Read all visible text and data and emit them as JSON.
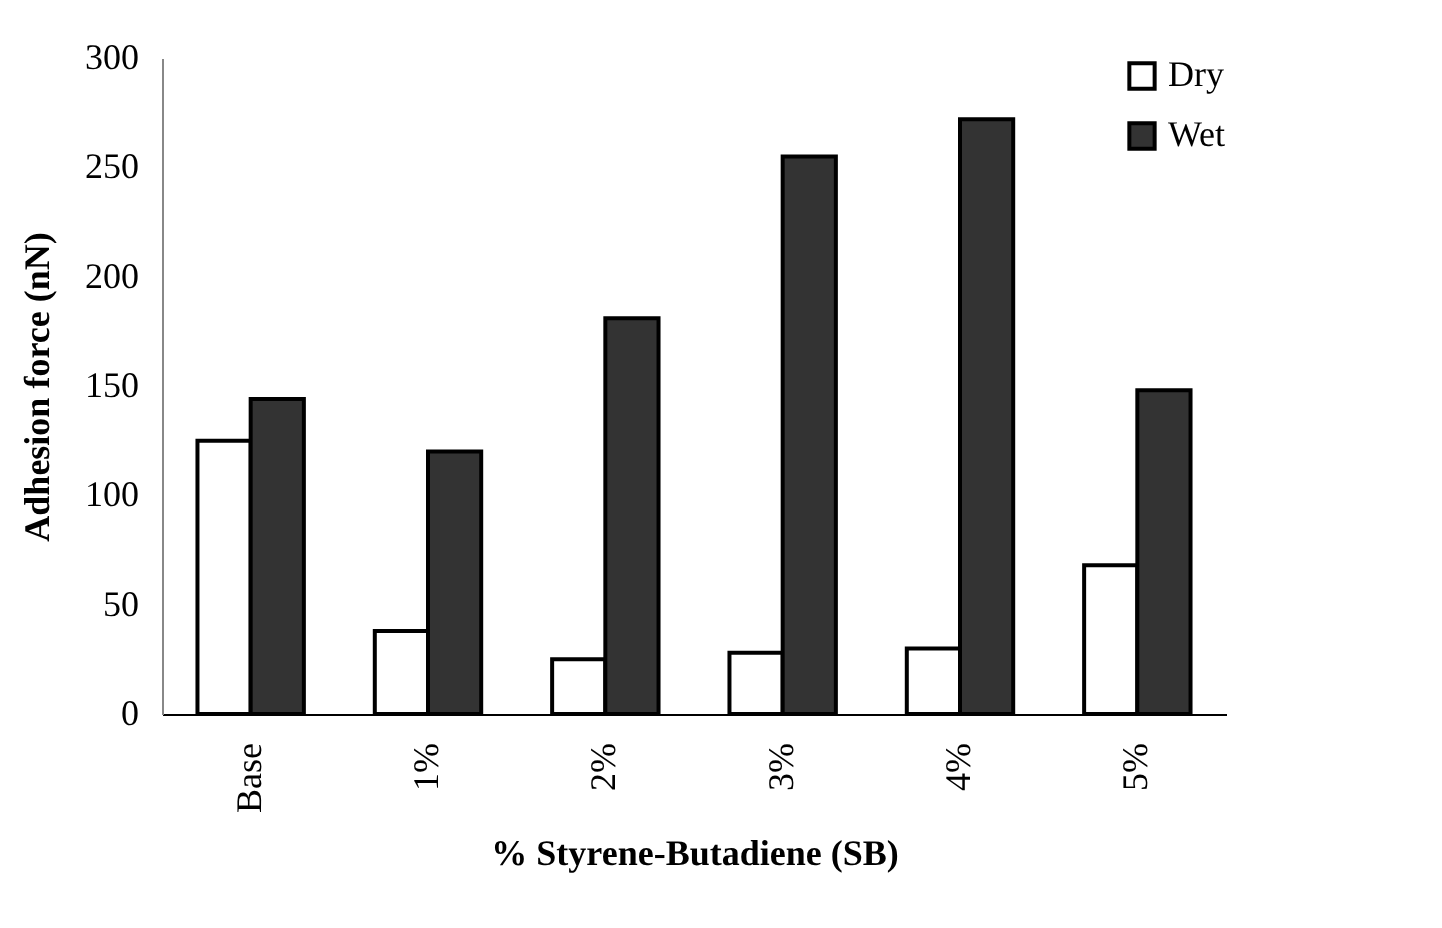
{
  "chart_data": {
    "type": "bar",
    "xlabel": "% Styrene-Butadiene (SB)",
    "ylabel": "Adhesion force (nN)",
    "categories": [
      "Base",
      "1%",
      "2%",
      "3%",
      "4%",
      "5%"
    ],
    "series": [
      {
        "name": "Dry",
        "color": "#ffffff",
        "values": [
          125,
          38,
          25,
          28,
          30,
          68
        ]
      },
      {
        "name": "Wet",
        "color": "#333333",
        "values": [
          144,
          120,
          181,
          255,
          272,
          148
        ]
      }
    ],
    "ylim": [
      0,
      300
    ],
    "yticks": [
      0,
      50,
      100,
      150,
      200,
      250,
      300
    ],
    "grid": false,
    "legend": "top right"
  }
}
